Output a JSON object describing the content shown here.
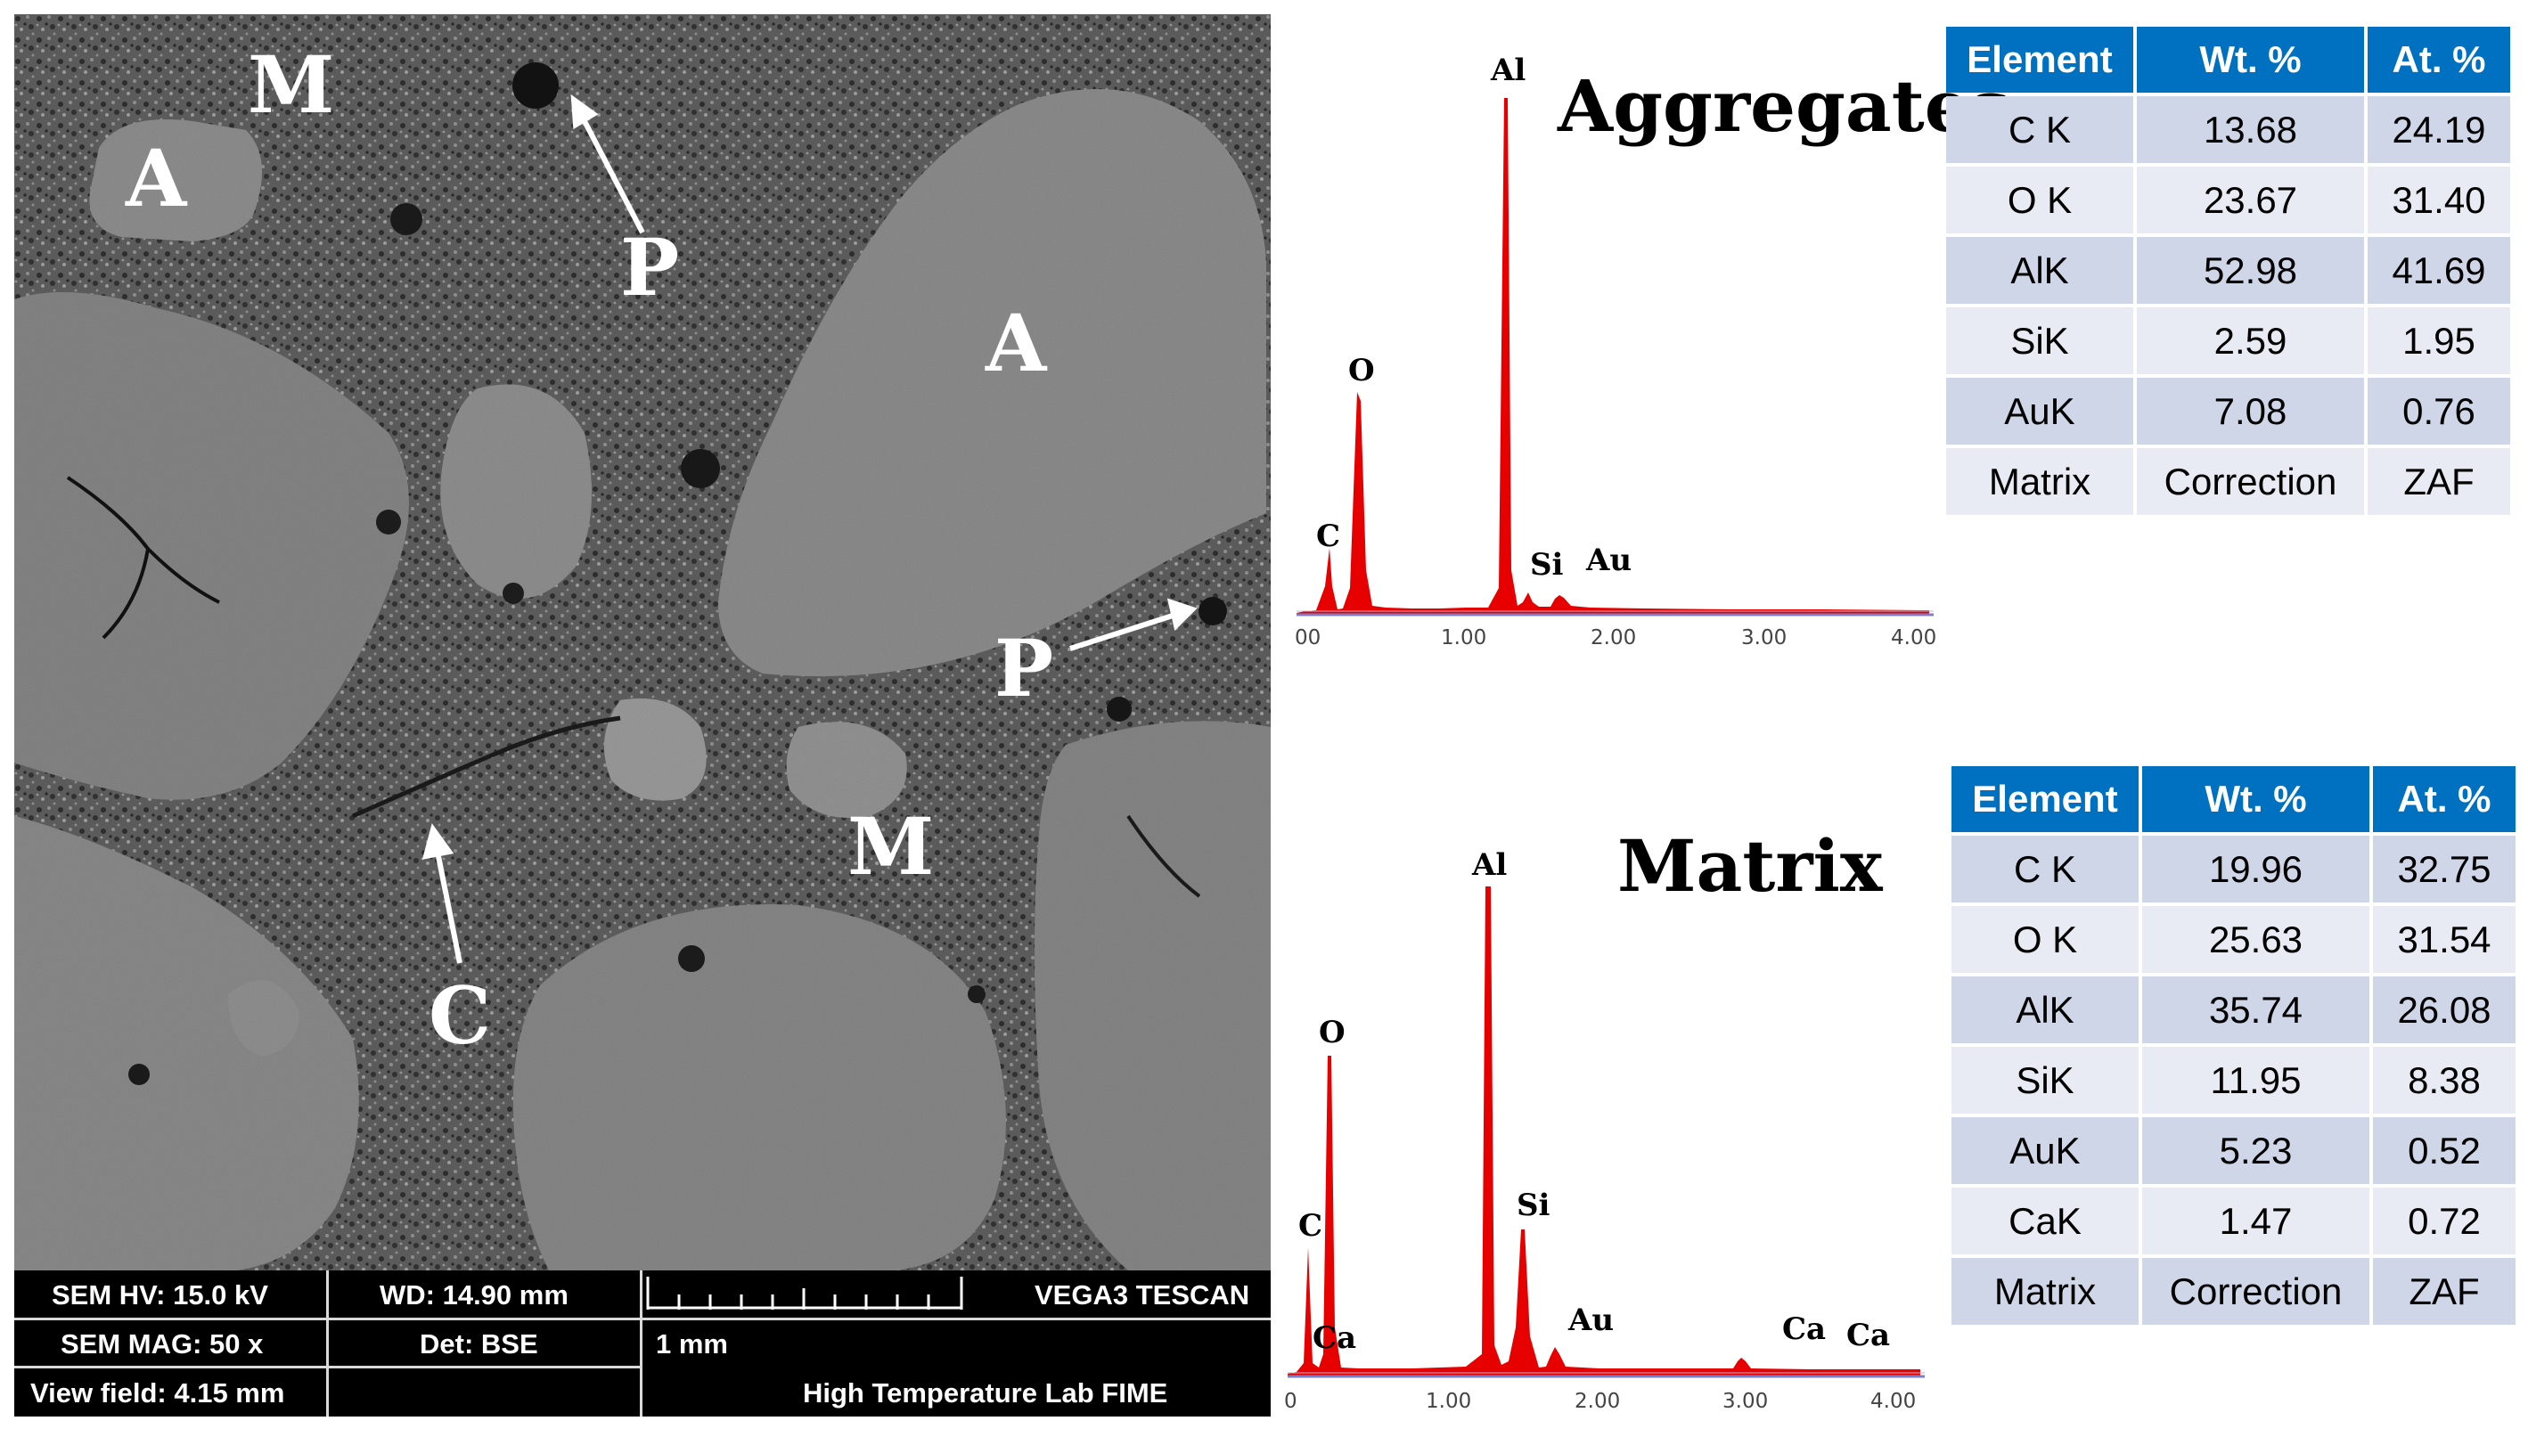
{
  "micrograph": {
    "labels": {
      "M_top": "M",
      "A_left": "A",
      "P_top": "P",
      "A_right": "A",
      "P_right": "P",
      "M_center": "M",
      "C_bottom": "C"
    },
    "info": {
      "hv": "SEM HV: 15.0 kV",
      "wd": "WD: 14.90 mm",
      "brand": "VEGA3 TESCAN",
      "mag": "SEM MAG: 50 x",
      "det": "Det: BSE",
      "scale": "1 mm",
      "view_field": "View field: 4.15 mm",
      "lab": "High Temperature Lab FIME"
    }
  },
  "spectra": {
    "aggregates": {
      "title": "Aggregates",
      "peaks": [
        "C",
        "O",
        "Al",
        "Si",
        "Au"
      ],
      "ticks": [
        "00",
        "1.00",
        "2.00",
        "3.00",
        "4.00"
      ]
    },
    "matrix": {
      "title": "Matrix",
      "peaks": [
        "C",
        "Ca",
        "O",
        "Al",
        "Si",
        "Au",
        "Ca",
        "Ca"
      ],
      "ticks": [
        "0",
        "1.00",
        "2.00",
        "3.00",
        "4.00"
      ]
    }
  },
  "tables": {
    "aggregates": {
      "headers": [
        "Element",
        "Wt. %",
        "At. %"
      ],
      "rows": [
        [
          "C K",
          "13.68",
          "24.19"
        ],
        [
          "O K",
          "23.67",
          "31.40"
        ],
        [
          "AlK",
          "52.98",
          "41.69"
        ],
        [
          "SiK",
          "2.59",
          "1.95"
        ],
        [
          "AuK",
          "7.08",
          "0.76"
        ],
        [
          "Matrix",
          "Correction",
          "ZAF"
        ]
      ]
    },
    "matrix": {
      "headers": [
        "Element",
        "Wt. %",
        "At. %"
      ],
      "rows": [
        [
          "C K",
          "19.96",
          "32.75"
        ],
        [
          "O K",
          "25.63",
          "31.54"
        ],
        [
          "AlK",
          "35.74",
          "26.08"
        ],
        [
          "SiK",
          "11.95",
          "8.38"
        ],
        [
          "AuK",
          "5.23",
          "0.52"
        ],
        [
          "CaK",
          "1.47",
          "0.72"
        ],
        [
          "Matrix",
          "Correction",
          "ZAF"
        ]
      ]
    }
  },
  "colors": {
    "spectrum_fill": "#e60000",
    "table_header": "#0070c0",
    "row_dark": "#cfd6e8",
    "row_light": "#e8ebf4"
  }
}
